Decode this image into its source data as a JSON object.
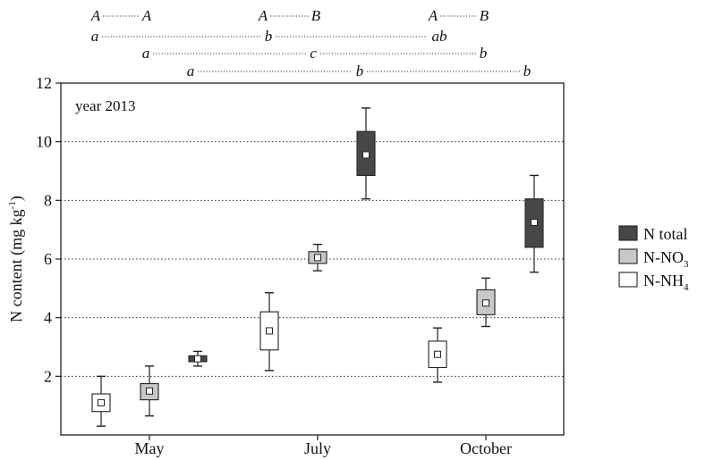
{
  "chart_data": {
    "type": "boxplot",
    "inner_label": "year 2013",
    "ylabel": "N content (mg kg",
    "ylabel_sup": "-1",
    "ylabel_close": ")",
    "ylim": [
      0,
      12
    ],
    "yticks": [
      "2",
      "4",
      "6",
      "8",
      "10",
      "12"
    ],
    "grid": "horizontal dotted at 2,4,6,8,10",
    "categories": [
      "May",
      "July",
      "October"
    ],
    "legend_position": "right",
    "colors": {
      "N total": "#474747",
      "N-NO3": "#c8c8c8",
      "N-NH4": "#ffffff"
    },
    "legend": [
      {
        "key": "N total",
        "base": "N total",
        "sub": ""
      },
      {
        "key": "N-NO3",
        "base": "N-NO",
        "sub": "3"
      },
      {
        "key": "N-NH4",
        "base": "N-NH",
        "sub": "4"
      }
    ],
    "series": [
      {
        "name": "N-NH4",
        "boxes": [
          {
            "category": "May",
            "min": 0.3,
            "q1": 0.8,
            "median": 1.1,
            "q3": 1.4,
            "max": 2.0
          },
          {
            "category": "July",
            "min": 2.2,
            "q1": 2.9,
            "median": 3.55,
            "q3": 4.2,
            "max": 4.85
          },
          {
            "category": "October",
            "min": 1.8,
            "q1": 2.3,
            "median": 2.75,
            "q3": 3.2,
            "max": 3.65
          }
        ]
      },
      {
        "name": "N-NO3",
        "boxes": [
          {
            "category": "May",
            "min": 0.65,
            "q1": 1.2,
            "median": 1.5,
            "q3": 1.75,
            "max": 2.35
          },
          {
            "category": "July",
            "min": 5.6,
            "q1": 5.85,
            "median": 6.05,
            "q3": 6.25,
            "max": 6.5
          },
          {
            "category": "October",
            "min": 3.7,
            "q1": 4.1,
            "median": 4.5,
            "q3": 4.95,
            "max": 5.35
          }
        ]
      },
      {
        "name": "N total",
        "boxes": [
          {
            "category": "May",
            "min": 2.35,
            "q1": 2.5,
            "median": 2.6,
            "q3": 2.7,
            "max": 2.85
          },
          {
            "category": "July",
            "min": 8.05,
            "q1": 8.85,
            "median": 9.55,
            "q3": 10.35,
            "max": 11.15
          },
          {
            "category": "October",
            "min": 5.55,
            "q1": 6.4,
            "median": 7.25,
            "q3": 8.05,
            "max": 8.85
          }
        ]
      }
    ],
    "significance": [
      {
        "series": "N total",
        "letters": [
          "A",
          "A",
          "A",
          "B",
          "A",
          "B"
        ]
      },
      {
        "series": "N-NH4",
        "letters": [
          "a",
          "b",
          "ab"
        ]
      },
      {
        "series": "N-NO3",
        "letters": [
          "a",
          "c",
          "b"
        ]
      },
      {
        "series": "N total",
        "letters": [
          "a",
          "b",
          "b"
        ]
      }
    ]
  }
}
